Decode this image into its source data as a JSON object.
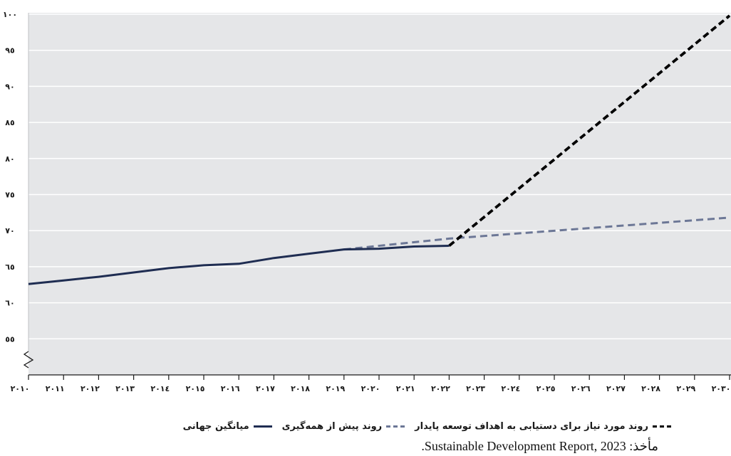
{
  "colors": {
    "plot_background": "#e5e6e8",
    "grid": "#ffffff",
    "world_average": "#1f2d52",
    "pre_pandemic_trend": "#6c7796",
    "required_trend": "#000000"
  },
  "chart_data": {
    "type": "line",
    "title": "",
    "xlabel": "",
    "ylabel": "",
    "ylim": [
      50,
      100
    ],
    "y_axis_break": true,
    "grid": "horizontal",
    "legend_position": "bottom",
    "x": [
      2010,
      2011,
      2012,
      2013,
      2014,
      2015,
      2016,
      2017,
      2018,
      2019,
      2020,
      2021,
      2022,
      2023,
      2024,
      2025,
      2026,
      2027,
      2028,
      2029,
      2030
    ],
    "x_tick_labels": [
      "۲۰۱۰",
      "۲۰۱۱",
      "۲۰۱۲",
      "۲۰۱۳",
      "۲۰۱٤",
      "۲۰۱٥",
      "۲۰۱٦",
      "۲۰۱۷",
      "۲۰۱۸",
      "۲۰۱۹",
      "۲۰۲۰",
      "۲۰۲۱",
      "۲۰۲۲",
      "۲۰۲۳",
      "۲۰۲٤",
      "۲۰۲٥",
      "۲۰۲٦",
      "۲۰۲۷",
      "۲۰۲۸",
      "۲۰۲۹",
      "۲۰۳۰"
    ],
    "y_ticks": [
      55,
      60,
      65,
      70,
      75,
      80,
      85,
      90,
      95,
      100
    ],
    "y_tick_labels": [
      "٥٥",
      "٦۰",
      "٦٥",
      "۷۰",
      "۷٥",
      "۸۰",
      "۸٥",
      "۹۰",
      "۹٥",
      "۱۰۰"
    ],
    "series": [
      {
        "name": "میانگین جهانی",
        "style": "solid",
        "color": "#1f2d52",
        "points": [
          [
            2010,
            62.6
          ],
          [
            2011,
            63.1
          ],
          [
            2012,
            63.6
          ],
          [
            2013,
            64.2
          ],
          [
            2014,
            64.8
          ],
          [
            2015,
            65.2
          ],
          [
            2016,
            65.4
          ],
          [
            2017,
            66.2
          ],
          [
            2018,
            66.8
          ],
          [
            2019,
            67.4
          ],
          [
            2020,
            67.5
          ],
          [
            2021,
            67.8
          ],
          [
            2022,
            67.9
          ]
        ]
      },
      {
        "name": "روند پیش از همه‌گیری",
        "style": "dashed",
        "color": "#6c7796",
        "points": [
          [
            2019,
            67.4
          ],
          [
            2022,
            68.9
          ],
          [
            2030,
            71.8
          ]
        ]
      },
      {
        "name": "روند مورد نیاز برای دستیابی به اهداف توسعه پایدار",
        "style": "dashed",
        "color": "#000000",
        "points": [
          [
            2022,
            67.9
          ],
          [
            2030,
            99.8
          ]
        ]
      }
    ]
  },
  "legend": {
    "required_trend_label": "روند مورد نیاز برای دستیابی به اهداف توسعه پایدار",
    "pre_pandemic_label": "روند پیش از همه‌گیری",
    "world_average_label": "میانگین جهانی"
  },
  "source_text": "مأخذ: Sustainable Development Report, 2023."
}
